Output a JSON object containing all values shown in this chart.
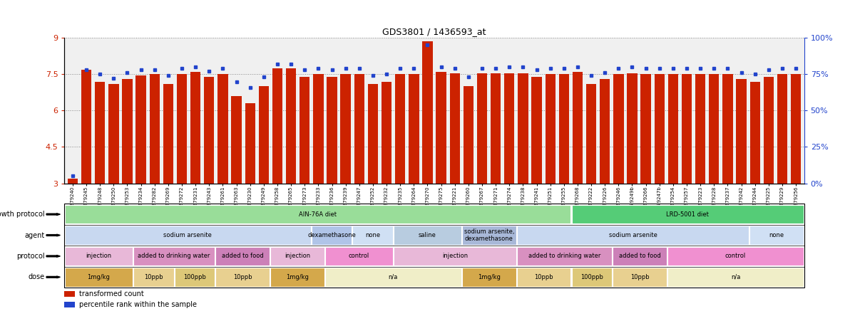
{
  "title": "GDS3801 / 1436593_at",
  "samples": [
    "GSM279240",
    "GSM279245",
    "GSM279248",
    "GSM279250",
    "GSM279253",
    "GSM279234",
    "GSM279282",
    "GSM279269",
    "GSM279272",
    "GSM279231",
    "GSM279243",
    "GSM279261",
    "GSM279263",
    "GSM279230",
    "GSM279249",
    "GSM279258",
    "GSM279265",
    "GSM279273",
    "GSM279233",
    "GSM279236",
    "GSM279239",
    "GSM279247",
    "GSM279252",
    "GSM279232",
    "GSM279235",
    "GSM279264",
    "GSM279270",
    "GSM279275",
    "GSM279221",
    "GSM279260",
    "GSM279267",
    "GSM279271",
    "GSM279274",
    "GSM279238",
    "GSM279241",
    "GSM279251",
    "GSM279255",
    "GSM279268",
    "GSM279222",
    "GSM279226",
    "GSM279246",
    "GSM279249b",
    "GSM279266",
    "GSM279247b",
    "GSM279254",
    "GSM279257",
    "GSM279223",
    "GSM279228",
    "GSM279237",
    "GSM279242",
    "GSM279244",
    "GSM279225",
    "GSM279229",
    "GSM279256"
  ],
  "bar_values": [
    3.2,
    7.7,
    7.2,
    7.1,
    7.3,
    7.45,
    7.5,
    7.1,
    7.5,
    7.6,
    7.4,
    7.5,
    6.6,
    6.3,
    7.0,
    7.75,
    7.75,
    7.4,
    7.5,
    7.4,
    7.5,
    7.5,
    7.1,
    7.2,
    7.5,
    7.5,
    8.85,
    7.6,
    7.55,
    7.0,
    7.55,
    7.55,
    7.55,
    7.55,
    7.4,
    7.5,
    7.5,
    7.6,
    7.1,
    7.3,
    7.5,
    7.55,
    7.5,
    7.5,
    7.5,
    7.5,
    7.5,
    7.5,
    7.5,
    7.3,
    7.2,
    7.4,
    7.5,
    7.5
  ],
  "percentile_values": [
    5,
    78,
    75,
    72,
    76,
    78,
    78,
    74,
    79,
    80,
    77,
    79,
    70,
    66,
    73,
    82,
    82,
    78,
    79,
    78,
    79,
    79,
    74,
    75,
    79,
    79,
    95,
    80,
    79,
    73,
    79,
    79,
    80,
    80,
    78,
    79,
    79,
    80,
    74,
    76,
    79,
    80,
    79,
    79,
    79,
    79,
    79,
    79,
    79,
    76,
    75,
    78,
    79,
    79
  ],
  "ylim_left": [
    3,
    9
  ],
  "ylim_right": [
    0,
    100
  ],
  "yticks_left": [
    3,
    4.5,
    6,
    7.5,
    9
  ],
  "yticks_right": [
    0,
    25,
    50,
    75,
    100
  ],
  "bar_color": "#cc2200",
  "dot_color": "#2244cc",
  "background_color": "#f0f0f0",
  "grid_color": "#888888",
  "growth_protocol_row": {
    "label": "growth protocol",
    "groups": [
      {
        "text": "AIN-76A diet",
        "start": 0,
        "end": 37,
        "color": "#99dd99"
      },
      {
        "text": "LRD-5001 diet",
        "start": 37,
        "end": 54,
        "color": "#55cc77"
      }
    ]
  },
  "agent_row": {
    "label": "agent",
    "groups": [
      {
        "text": "sodium arsenite",
        "start": 0,
        "end": 18,
        "color": "#c8d8f0"
      },
      {
        "text": "dexamethasone",
        "start": 18,
        "end": 21,
        "color": "#b0c4e8"
      },
      {
        "text": "none",
        "start": 21,
        "end": 24,
        "color": "#d0e0f4"
      },
      {
        "text": "saline",
        "start": 24,
        "end": 29,
        "color": "#b8cce0"
      },
      {
        "text": "sodium arsenite,\ndexamethasone",
        "start": 29,
        "end": 33,
        "color": "#a8b8d8"
      },
      {
        "text": "sodium arsenite",
        "start": 33,
        "end": 50,
        "color": "#c8d8f0"
      },
      {
        "text": "none",
        "start": 50,
        "end": 54,
        "color": "#d0e0f4"
      }
    ]
  },
  "protocol_row": {
    "label": "protocol",
    "groups": [
      {
        "text": "injection",
        "start": 0,
        "end": 5,
        "color": "#e8b8d8"
      },
      {
        "text": "added to drinking water",
        "start": 5,
        "end": 11,
        "color": "#d890c0"
      },
      {
        "text": "added to food",
        "start": 11,
        "end": 15,
        "color": "#cc80b8"
      },
      {
        "text": "injection",
        "start": 15,
        "end": 19,
        "color": "#e8b8d8"
      },
      {
        "text": "control",
        "start": 19,
        "end": 24,
        "color": "#f090d0"
      },
      {
        "text": "injection",
        "start": 24,
        "end": 33,
        "color": "#e8b8d8"
      },
      {
        "text": "added to drinking water",
        "start": 33,
        "end": 40,
        "color": "#d890c0"
      },
      {
        "text": "added to food",
        "start": 40,
        "end": 44,
        "color": "#cc80b8"
      },
      {
        "text": "control",
        "start": 44,
        "end": 54,
        "color": "#f090d0"
      }
    ]
  },
  "dose_row": {
    "label": "dose",
    "groups": [
      {
        "text": "1mg/kg",
        "start": 0,
        "end": 5,
        "color": "#d4a84b"
      },
      {
        "text": "10ppb",
        "start": 5,
        "end": 8,
        "color": "#e8d090"
      },
      {
        "text": "100ppb",
        "start": 8,
        "end": 11,
        "color": "#ddc878"
      },
      {
        "text": "10ppb",
        "start": 11,
        "end": 15,
        "color": "#e8d090"
      },
      {
        "text": "1mg/kg",
        "start": 15,
        "end": 19,
        "color": "#d4a84b"
      },
      {
        "text": "n/a",
        "start": 19,
        "end": 29,
        "color": "#f0eec8"
      },
      {
        "text": "1mg/kg",
        "start": 29,
        "end": 33,
        "color": "#d4a84b"
      },
      {
        "text": "10ppb",
        "start": 33,
        "end": 37,
        "color": "#e8d090"
      },
      {
        "text": "100ppb",
        "start": 37,
        "end": 40,
        "color": "#ddc878"
      },
      {
        "text": "10ppb",
        "start": 40,
        "end": 44,
        "color": "#e8d090"
      },
      {
        "text": "n/a",
        "start": 44,
        "end": 54,
        "color": "#f0eec8"
      }
    ]
  }
}
